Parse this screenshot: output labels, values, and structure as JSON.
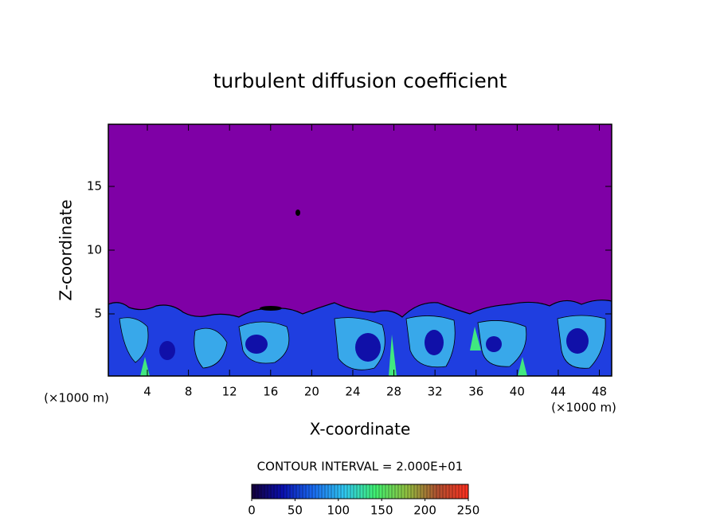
{
  "chart_data": {
    "type": "contour",
    "title": "turbulent diffusion coefficient",
    "xlabel": "X-coordinate",
    "ylabel": "Z-coordinate",
    "x_unit": "(×1000 m)",
    "contour_interval": "CONTOUR INTERVAL = 2.000E+01",
    "xlim": [
      0.2,
      49.2
    ],
    "xticks": [
      4,
      8,
      12,
      16,
      20,
      24,
      28,
      32,
      36,
      40,
      44,
      48
    ],
    "ylim": [
      0.125,
      19.875
    ],
    "yticks": [
      5,
      10,
      15
    ],
    "background_color": "#7f00a6",
    "clim": [
      0,
      250
    ],
    "cticks": [
      0,
      50,
      100,
      150,
      200,
      250
    ],
    "colormap": [
      "#14003a",
      "#0a10b0",
      "#1a6cf0",
      "#30c8f0",
      "#40f070",
      "#90c040",
      "#b05030",
      "#ff3020"
    ]
  }
}
